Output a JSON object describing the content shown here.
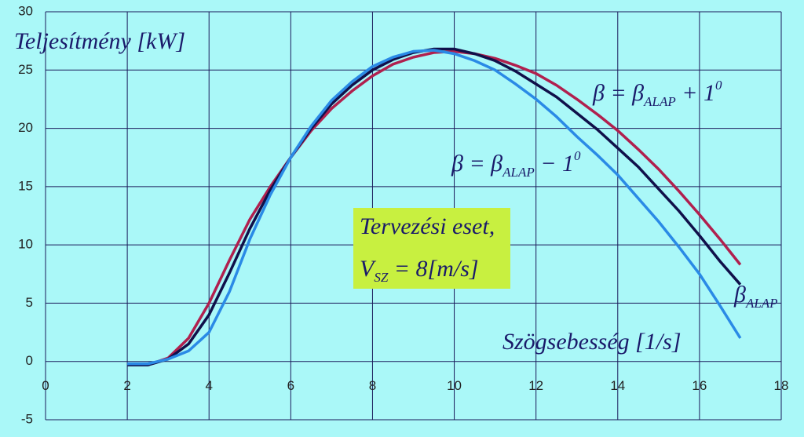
{
  "chart_data": {
    "type": "line",
    "y_label": "Teljesítmény [kW]",
    "x_label": "Szögsebesség [1/s]",
    "annotation": {
      "line1": "Tervezési eset,",
      "line2": {
        "main": "V",
        "sub": "SZ",
        "tail": " = 8[m/s]"
      }
    },
    "x": [
      2,
      2.5,
      3,
      3.5,
      4,
      4.5,
      5,
      5.5,
      6,
      6.5,
      7,
      7.5,
      8,
      8.5,
      9,
      9.5,
      10,
      10.5,
      11,
      11.5,
      12,
      12.5,
      13,
      13.5,
      14,
      14.5,
      15,
      15.5,
      16,
      16.5,
      17
    ],
    "series": [
      {
        "label": {
          "main": "β = β",
          "sub": "ALAP",
          "tail": " + 1",
          "sup": "0"
        },
        "color": "#b0204e",
        "values": [
          -0.3,
          -0.3,
          0.3,
          2,
          5,
          8.7,
          12.2,
          15,
          17.5,
          19.8,
          21.7,
          23.2,
          24.5,
          25.5,
          26.1,
          26.5,
          26.6,
          26.4,
          26,
          25.4,
          24.7,
          23.7,
          22.5,
          21.2,
          19.8,
          18.2,
          16.5,
          14.6,
          12.6,
          10.5,
          8.3
        ]
      },
      {
        "label": {
          "main": "β",
          "sub": "ALAP"
        },
        "color": "#10104a",
        "values": [
          -0.3,
          -0.3,
          0.2,
          1.5,
          4,
          7.6,
          11.4,
          14.7,
          17.5,
          20,
          22.1,
          23.7,
          25,
          25.9,
          26.5,
          26.8,
          26.8,
          26.4,
          25.8,
          24.9,
          23.8,
          22.7,
          21.3,
          19.9,
          18.3,
          16.7,
          14.8,
          12.9,
          10.8,
          8.6,
          6.6
        ]
      },
      {
        "label": {
          "main": "β = β",
          "sub": "ALAP",
          "tail": " − 1",
          "sup": "0"
        },
        "color": "#2a8ae6",
        "values": [
          -0.2,
          -0.2,
          0.2,
          0.9,
          2.5,
          6,
          10.5,
          14.3,
          17.5,
          20.2,
          22.4,
          24,
          25.3,
          26.1,
          26.6,
          26.7,
          26.4,
          25.8,
          25,
          23.8,
          22.5,
          21,
          19.3,
          17.7,
          16,
          14,
          12,
          9.8,
          7.5,
          4.8,
          2
        ]
      }
    ],
    "xlim": [
      0,
      18
    ],
    "xticks": [
      0,
      2,
      4,
      6,
      8,
      10,
      12,
      14,
      16,
      18
    ],
    "ylim": [
      -5,
      30
    ],
    "yticks": [
      -5,
      0,
      5,
      10,
      15,
      20,
      25,
      30
    ],
    "grid": true
  }
}
